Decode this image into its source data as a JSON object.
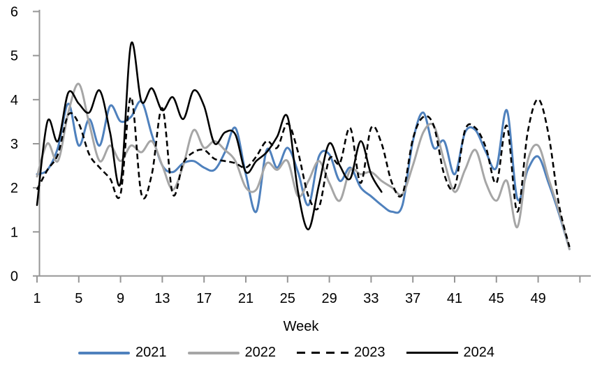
{
  "chart_data": {
    "type": "line",
    "title": "",
    "xlabel": "Week",
    "ylabel": "",
    "ylim": [
      0,
      6
    ],
    "xlim": [
      1,
      53
    ],
    "grid": false,
    "legend_position": "bottom",
    "axis_color": "#969696",
    "yticks": [
      0,
      1,
      2,
      3,
      4,
      5,
      6
    ],
    "xticks": [
      1,
      5,
      9,
      13,
      17,
      21,
      25,
      29,
      33,
      37,
      41,
      45,
      49,
      53
    ],
    "xtick_labels": [
      "1",
      "5",
      "9",
      "13",
      "17",
      "21",
      "25",
      "29",
      "33",
      "37",
      "41",
      "45",
      "49",
      ""
    ],
    "x_weeks": [
      1,
      2,
      3,
      4,
      5,
      6,
      7,
      8,
      9,
      10,
      11,
      12,
      13,
      14,
      15,
      16,
      17,
      18,
      19,
      20,
      21,
      22,
      23,
      24,
      25,
      26,
      27,
      28,
      29,
      30,
      31,
      32,
      33,
      34,
      35,
      36,
      37,
      38,
      39,
      40,
      41,
      42,
      43,
      44,
      45,
      46,
      47,
      48,
      49,
      50,
      51,
      52
    ],
    "series": [
      {
        "name": "2021",
        "color": "#4F81BD",
        "style": "solid",
        "width": 3,
        "values": [
          2.3,
          2.4,
          2.9,
          3.9,
          2.95,
          3.55,
          2.95,
          3.85,
          3.5,
          3.6,
          3.95,
          3.2,
          2.5,
          2.35,
          2.55,
          2.6,
          2.45,
          2.4,
          2.8,
          3.35,
          2.3,
          1.45,
          2.85,
          2.45,
          2.9,
          2.35,
          1.6,
          2.7,
          2.75,
          2.15,
          2.45,
          2.0,
          1.8,
          1.6,
          1.45,
          1.6,
          3.05,
          3.7,
          2.9,
          3.05,
          2.3,
          3.25,
          3.3,
          2.8,
          2.45,
          3.75,
          1.75,
          2.4,
          2.7,
          2.1,
          1.4,
          0.6
        ]
      },
      {
        "name": "2022",
        "color": "#A6A6A6",
        "style": "solid",
        "width": 3,
        "values": [
          2.25,
          3.0,
          2.6,
          3.7,
          4.35,
          3.45,
          2.6,
          2.95,
          2.6,
          2.95,
          2.8,
          3.05,
          2.5,
          1.95,
          2.5,
          3.3,
          2.9,
          3.05,
          2.85,
          2.6,
          2.0,
          1.95,
          2.55,
          2.4,
          2.6,
          1.8,
          2.15,
          2.6,
          2.1,
          1.7,
          2.4,
          2.3,
          2.35,
          2.15,
          2.0,
          1.85,
          2.5,
          3.25,
          3.4,
          2.6,
          1.9,
          2.4,
          2.85,
          2.1,
          1.7,
          2.15,
          1.1,
          2.6,
          2.95,
          2.2,
          1.45,
          0.6
        ]
      },
      {
        "name": "2023",
        "color": "#000000",
        "style": "dashed",
        "width": 2.6,
        "values": [
          1.95,
          2.4,
          2.75,
          3.65,
          3.45,
          2.75,
          2.45,
          2.2,
          1.85,
          4.05,
          1.85,
          2.3,
          3.8,
          1.85,
          2.55,
          2.8,
          2.85,
          2.65,
          2.6,
          2.55,
          2.45,
          2.7,
          3.05,
          2.9,
          3.45,
          2.8,
          1.8,
          1.55,
          2.65,
          2.55,
          3.35,
          2.1,
          3.35,
          3.0,
          2.1,
          1.85,
          3.1,
          3.6,
          3.4,
          2.3,
          2.0,
          3.3,
          3.35,
          2.9,
          2.1,
          3.4,
          1.45,
          3.25,
          4.0,
          3.2,
          1.6,
          0.65
        ]
      },
      {
        "name": "2024",
        "color": "#000000",
        "style": "solid",
        "width": 2.6,
        "values": [
          1.6,
          3.5,
          3.05,
          4.15,
          3.9,
          3.7,
          4.2,
          3.25,
          2.1,
          5.25,
          3.95,
          4.25,
          3.75,
          4.05,
          3.55,
          4.2,
          3.85,
          3.0,
          3.25,
          3.2,
          2.35,
          2.6,
          2.8,
          3.15,
          3.6,
          1.9,
          1.05,
          2.05,
          3.0,
          2.5,
          2.2,
          3.05,
          2.3,
          1.9
        ]
      }
    ]
  },
  "legend": {
    "items": [
      {
        "label": "2021"
      },
      {
        "label": "2022"
      },
      {
        "label": "2023"
      },
      {
        "label": "2024"
      }
    ]
  }
}
